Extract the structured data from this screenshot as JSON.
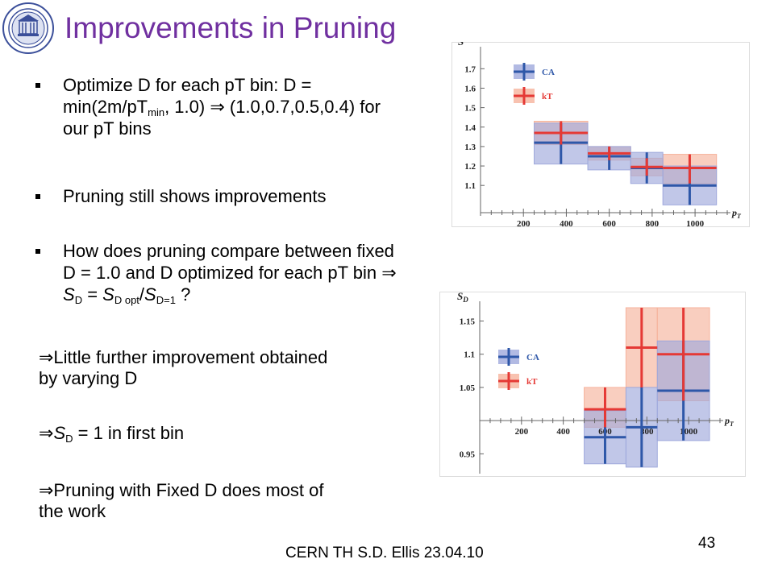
{
  "slide": {
    "title": "Improvements in Pruning",
    "footer": "CERN TH     S.D. Ellis    23.04.10",
    "number": "43",
    "bullets": [
      {
        "line1": "Optimize D for each pT bin: D =",
        "line2": "min(2m/pT",
        "sub": "min",
        "line2b": ", 1.0) ⇒ (1.0,0.7,0.5,0.4) for",
        "line3": "our pT bins"
      },
      {
        "text": "Pruning still shows improvements"
      },
      {
        "line1": "How does pruning compare between fixed",
        "line2": "D = 1.0 and D optimized for each pT bin ⇒",
        "line3": "S_D = S_D opt / S_D=1 ?"
      }
    ],
    "implications": [
      {
        "line1": "⇒Little further improvement obtained",
        "line2": "by varying D"
      },
      {
        "text": "⇒S_D = 1 in first bin"
      },
      {
        "line1": "⇒Pruning with Fixed D does most of",
        "line2": "the work"
      }
    ]
  },
  "colors": {
    "title": "#7030A0",
    "ca": "#2E57A8",
    "kt": "#E53935",
    "ca_band": "#9FA9DC",
    "kt_band": "#F6B39C"
  },
  "chart_data": [
    {
      "type": "bar",
      "title": "",
      "ylabel": "S",
      "xlabel": "pT",
      "xlim": [
        0,
        1150
      ],
      "ylim": [
        0.96,
        1.78
      ],
      "yticks": [
        1.1,
        1.2,
        1.3,
        1.4,
        1.5,
        1.6,
        1.7
      ],
      "xticks": [
        200,
        400,
        600,
        800,
        1000
      ],
      "legend": "top-left",
      "bins": [
        [
          250,
          500
        ],
        [
          500,
          700
        ],
        [
          700,
          850
        ],
        [
          850,
          1100
        ]
      ],
      "series": [
        {
          "name": "CA",
          "values": [
            1.32,
            1.25,
            1.19,
            1.1
          ],
          "err_lo": [
            1.21,
            1.18,
            1.11,
            1.0
          ],
          "err_hi": [
            1.42,
            1.3,
            1.27,
            1.2
          ]
        },
        {
          "name": "kT",
          "values": [
            1.37,
            1.265,
            1.195,
            1.19
          ],
          "err_lo": [
            1.31,
            1.23,
            1.15,
            1.11
          ],
          "err_hi": [
            1.43,
            1.3,
            1.24,
            1.26
          ]
        }
      ]
    },
    {
      "type": "bar",
      "title": "",
      "ylabel": "S_D",
      "xlabel": "pT",
      "xlim": [
        0,
        1150
      ],
      "ylim": [
        0.925,
        1.17
      ],
      "yticks": [
        0.95,
        1.05,
        1.1,
        1.15
      ],
      "xticks": [
        200,
        400,
        600,
        800,
        1000
      ],
      "legend": "top-left",
      "bins": [
        [
          500,
          700
        ],
        [
          700,
          850
        ],
        [
          850,
          1100
        ]
      ],
      "series": [
        {
          "name": "CA",
          "values": [
            0.975,
            0.99,
            1.045
          ],
          "err_lo": [
            0.935,
            0.93,
            0.97
          ],
          "err_hi": [
            1.015,
            1.05,
            1.12
          ]
        },
        {
          "name": "kT",
          "values": [
            1.017,
            1.11,
            1.1
          ],
          "err_lo": [
            0.99,
            1.05,
            1.03
          ],
          "err_hi": [
            1.05,
            1.17,
            1.17
          ]
        }
      ]
    }
  ]
}
